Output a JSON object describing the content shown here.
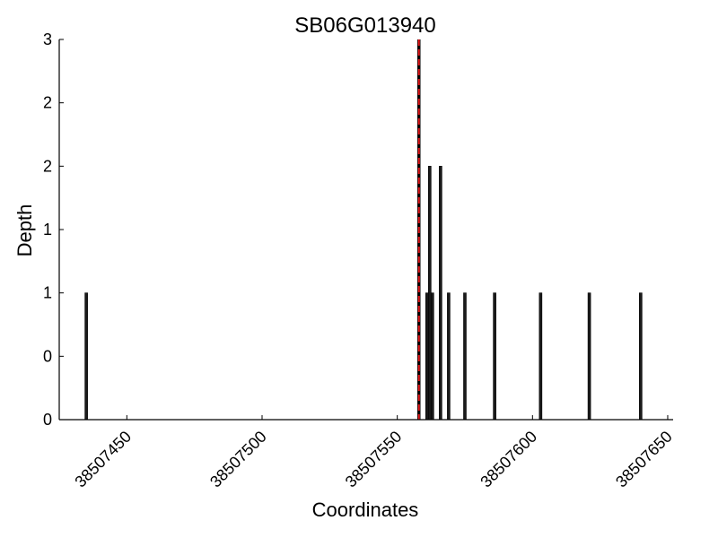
{
  "chart_data": {
    "type": "bar",
    "title": "SB06G013940",
    "xlabel": "Coordinates",
    "ylabel": "Depth",
    "xlim": [
      38507425,
      38507652
    ],
    "ylim": [
      0,
      3
    ],
    "x_ticks": [
      38507450,
      38507500,
      38507550,
      38507600,
      38507650
    ],
    "x_tick_labels": [
      "38507450",
      "38507500",
      "38507550",
      "38507600",
      "38507650"
    ],
    "y_ticks": [
      0,
      0.5,
      1,
      1.5,
      2,
      2.5,
      3
    ],
    "y_tick_labels": [
      "0",
      "0",
      "1",
      "1",
      "2",
      "2",
      "3"
    ],
    "grid": false,
    "bar_color": "#1a1a1a",
    "bars": [
      {
        "x": 38507435,
        "depth": 1
      },
      {
        "x": 38507561,
        "depth": 1
      },
      {
        "x": 38507562,
        "depth": 2
      },
      {
        "x": 38507563,
        "depth": 1
      },
      {
        "x": 38507566,
        "depth": 2
      },
      {
        "x": 38507569,
        "depth": 1
      },
      {
        "x": 38507575,
        "depth": 1
      },
      {
        "x": 38507586,
        "depth": 1
      },
      {
        "x": 38507603,
        "depth": 1
      },
      {
        "x": 38507621,
        "depth": 1
      },
      {
        "x": 38507640,
        "depth": 1
      }
    ],
    "marker_line": {
      "x": 38507558,
      "color": "#e8191c",
      "style": "dashed"
    }
  }
}
